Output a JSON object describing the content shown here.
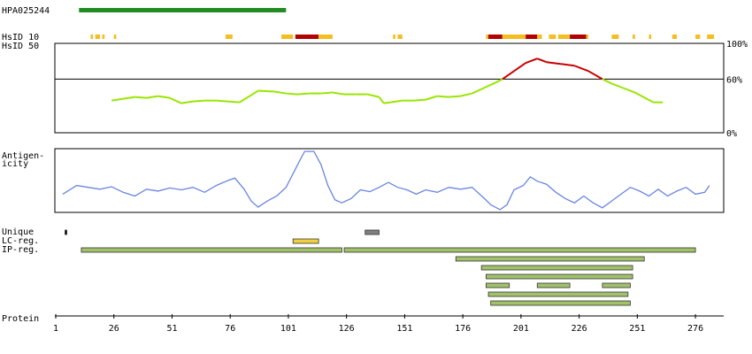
{
  "xlim": [
    1,
    287
  ],
  "antibody": {
    "label": "HPA025244",
    "start": 11,
    "end": 100,
    "color": "#228b22"
  },
  "hsid10": {
    "label": "HsID 10",
    "segments": [
      {
        "start": 16,
        "end": 17,
        "color": "#f5bd1f"
      },
      {
        "start": 18,
        "end": 20,
        "color": "#f5bd1f"
      },
      {
        "start": 21,
        "end": 22,
        "color": "#f5bd1f"
      },
      {
        "start": 26,
        "end": 27,
        "color": "#f5bd1f"
      },
      {
        "start": 74,
        "end": 77,
        "color": "#f5bd1f"
      },
      {
        "start": 98,
        "end": 103,
        "color": "#f5bd1f"
      },
      {
        "start": 104,
        "end": 114,
        "color": "#b30000"
      },
      {
        "start": 114,
        "end": 120,
        "color": "#f5bd1f"
      },
      {
        "start": 146,
        "end": 147,
        "color": "#f5bd1f"
      },
      {
        "start": 148,
        "end": 150,
        "color": "#f5bd1f"
      },
      {
        "start": 186,
        "end": 187,
        "color": "#f5bd1f"
      },
      {
        "start": 187,
        "end": 193,
        "color": "#b30000"
      },
      {
        "start": 193,
        "end": 203,
        "color": "#f5bd1f"
      },
      {
        "start": 203,
        "end": 208,
        "color": "#b30000"
      },
      {
        "start": 208,
        "end": 210,
        "color": "#f5bd1f"
      },
      {
        "start": 213,
        "end": 216,
        "color": "#f5bd1f"
      },
      {
        "start": 217,
        "end": 222,
        "color": "#f5bd1f"
      },
      {
        "start": 222,
        "end": 229,
        "color": "#b30000"
      },
      {
        "start": 229,
        "end": 230,
        "color": "#f5bd1f"
      },
      {
        "start": 240,
        "end": 243,
        "color": "#f5bd1f"
      },
      {
        "start": 249,
        "end": 250,
        "color": "#f5bd1f"
      },
      {
        "start": 256,
        "end": 257,
        "color": "#f5bd1f"
      },
      {
        "start": 266,
        "end": 268,
        "color": "#f5bd1f"
      },
      {
        "start": 276,
        "end": 278,
        "color": "#f5bd1f"
      },
      {
        "start": 281,
        "end": 284,
        "color": "#f5bd1f"
      }
    ]
  },
  "hsid50": {
    "label": "HsID 50",
    "ylim": [
      0,
      100
    ],
    "yticks": [
      {
        "value": 100,
        "label": "100%"
      },
      {
        "value": 60,
        "label": "60%"
      },
      {
        "value": 0,
        "label": "0%"
      }
    ],
    "threshold_tick": 1,
    "color_above": "#c80000",
    "color_below": "#99e600",
    "x": [
      25,
      30,
      35,
      40,
      45,
      50,
      55,
      60,
      65,
      70,
      75,
      80,
      85,
      88,
      95,
      100,
      105,
      110,
      115,
      120,
      125,
      130,
      135,
      140,
      142,
      145,
      150,
      155,
      160,
      165,
      170,
      175,
      180,
      185,
      190,
      193,
      198,
      203,
      208,
      212,
      218,
      224,
      230,
      236,
      240,
      245,
      250,
      255,
      258,
      262
    ],
    "values": [
      36,
      38,
      40,
      39,
      41,
      39,
      33,
      35,
      36,
      36,
      35,
      34,
      42,
      47,
      46,
      44,
      43,
      44,
      44,
      45,
      43,
      43,
      43,
      40,
      33,
      34,
      36,
      36,
      37,
      41,
      40,
      41,
      44,
      50,
      56,
      60,
      69,
      78,
      83,
      79,
      77,
      75,
      69,
      60,
      55,
      50,
      45,
      38,
      34,
      34
    ]
  },
  "antigenicity": {
    "label_lines": [
      "Antigen-",
      "icity"
    ],
    "ylim": [
      0,
      100
    ],
    "color": "#6a85e0",
    "x": [
      4,
      10,
      15,
      20,
      25,
      30,
      35,
      40,
      45,
      50,
      55,
      60,
      65,
      70,
      75,
      78,
      82,
      85,
      88,
      92,
      96,
      100,
      103,
      106,
      108,
      112,
      115,
      118,
      121,
      124,
      128,
      132,
      136,
      140,
      144,
      148,
      152,
      156,
      160,
      165,
      170,
      175,
      180,
      185,
      188,
      192,
      195,
      198,
      202,
      205,
      208,
      212,
      216,
      220,
      224,
      228,
      232,
      236,
      240,
      244,
      248,
      252,
      256,
      260,
      264,
      268,
      272,
      276,
      280,
      282
    ],
    "values": [
      28,
      42,
      39,
      36,
      40,
      31,
      25,
      36,
      33,
      38,
      35,
      39,
      31,
      42,
      50,
      54,
      36,
      17,
      7,
      17,
      25,
      39,
      61,
      83,
      97,
      97,
      76,
      42,
      19,
      14,
      21,
      35,
      32,
      39,
      47,
      39,
      35,
      28,
      35,
      31,
      39,
      36,
      39,
      22,
      11,
      3,
      11,
      35,
      42,
      56,
      49,
      44,
      31,
      21,
      14,
      25,
      14,
      6,
      17,
      28,
      39,
      33,
      25,
      36,
      25,
      33,
      39,
      28,
      31,
      42
    ]
  },
  "tracks": [
    {
      "label": "Unique",
      "bars": [
        {
          "start": 5,
          "end": 5,
          "color": "#000000"
        },
        {
          "start": 134,
          "end": 140,
          "color": "#808080"
        }
      ]
    },
    {
      "label": "LC-reg.",
      "bars": [
        {
          "start": 103,
          "end": 114,
          "color": "#f0d040"
        }
      ]
    },
    {
      "label": "IP-reg.",
      "bars": [
        {
          "start": 12,
          "end": 124,
          "color": "#a2c26a"
        },
        {
          "start": 125,
          "end": 276,
          "color": "#a2c26a"
        }
      ]
    }
  ],
  "ip_rows": [
    [
      {
        "start": 173,
        "end": 254
      }
    ],
    [
      {
        "start": 184,
        "end": 249
      }
    ],
    [
      {
        "start": 186,
        "end": 249
      }
    ],
    [
      {
        "start": 186,
        "end": 196
      },
      {
        "start": 208,
        "end": 222
      },
      {
        "start": 236,
        "end": 248
      }
    ],
    [
      {
        "start": 187,
        "end": 247
      }
    ],
    [
      {
        "start": 188,
        "end": 248
      }
    ]
  ],
  "ip_color": "#a2c26a",
  "axis": {
    "label": "Protein",
    "ticks": [
      1,
      26,
      51,
      76,
      101,
      126,
      151,
      176,
      201,
      226,
      251,
      276
    ]
  }
}
